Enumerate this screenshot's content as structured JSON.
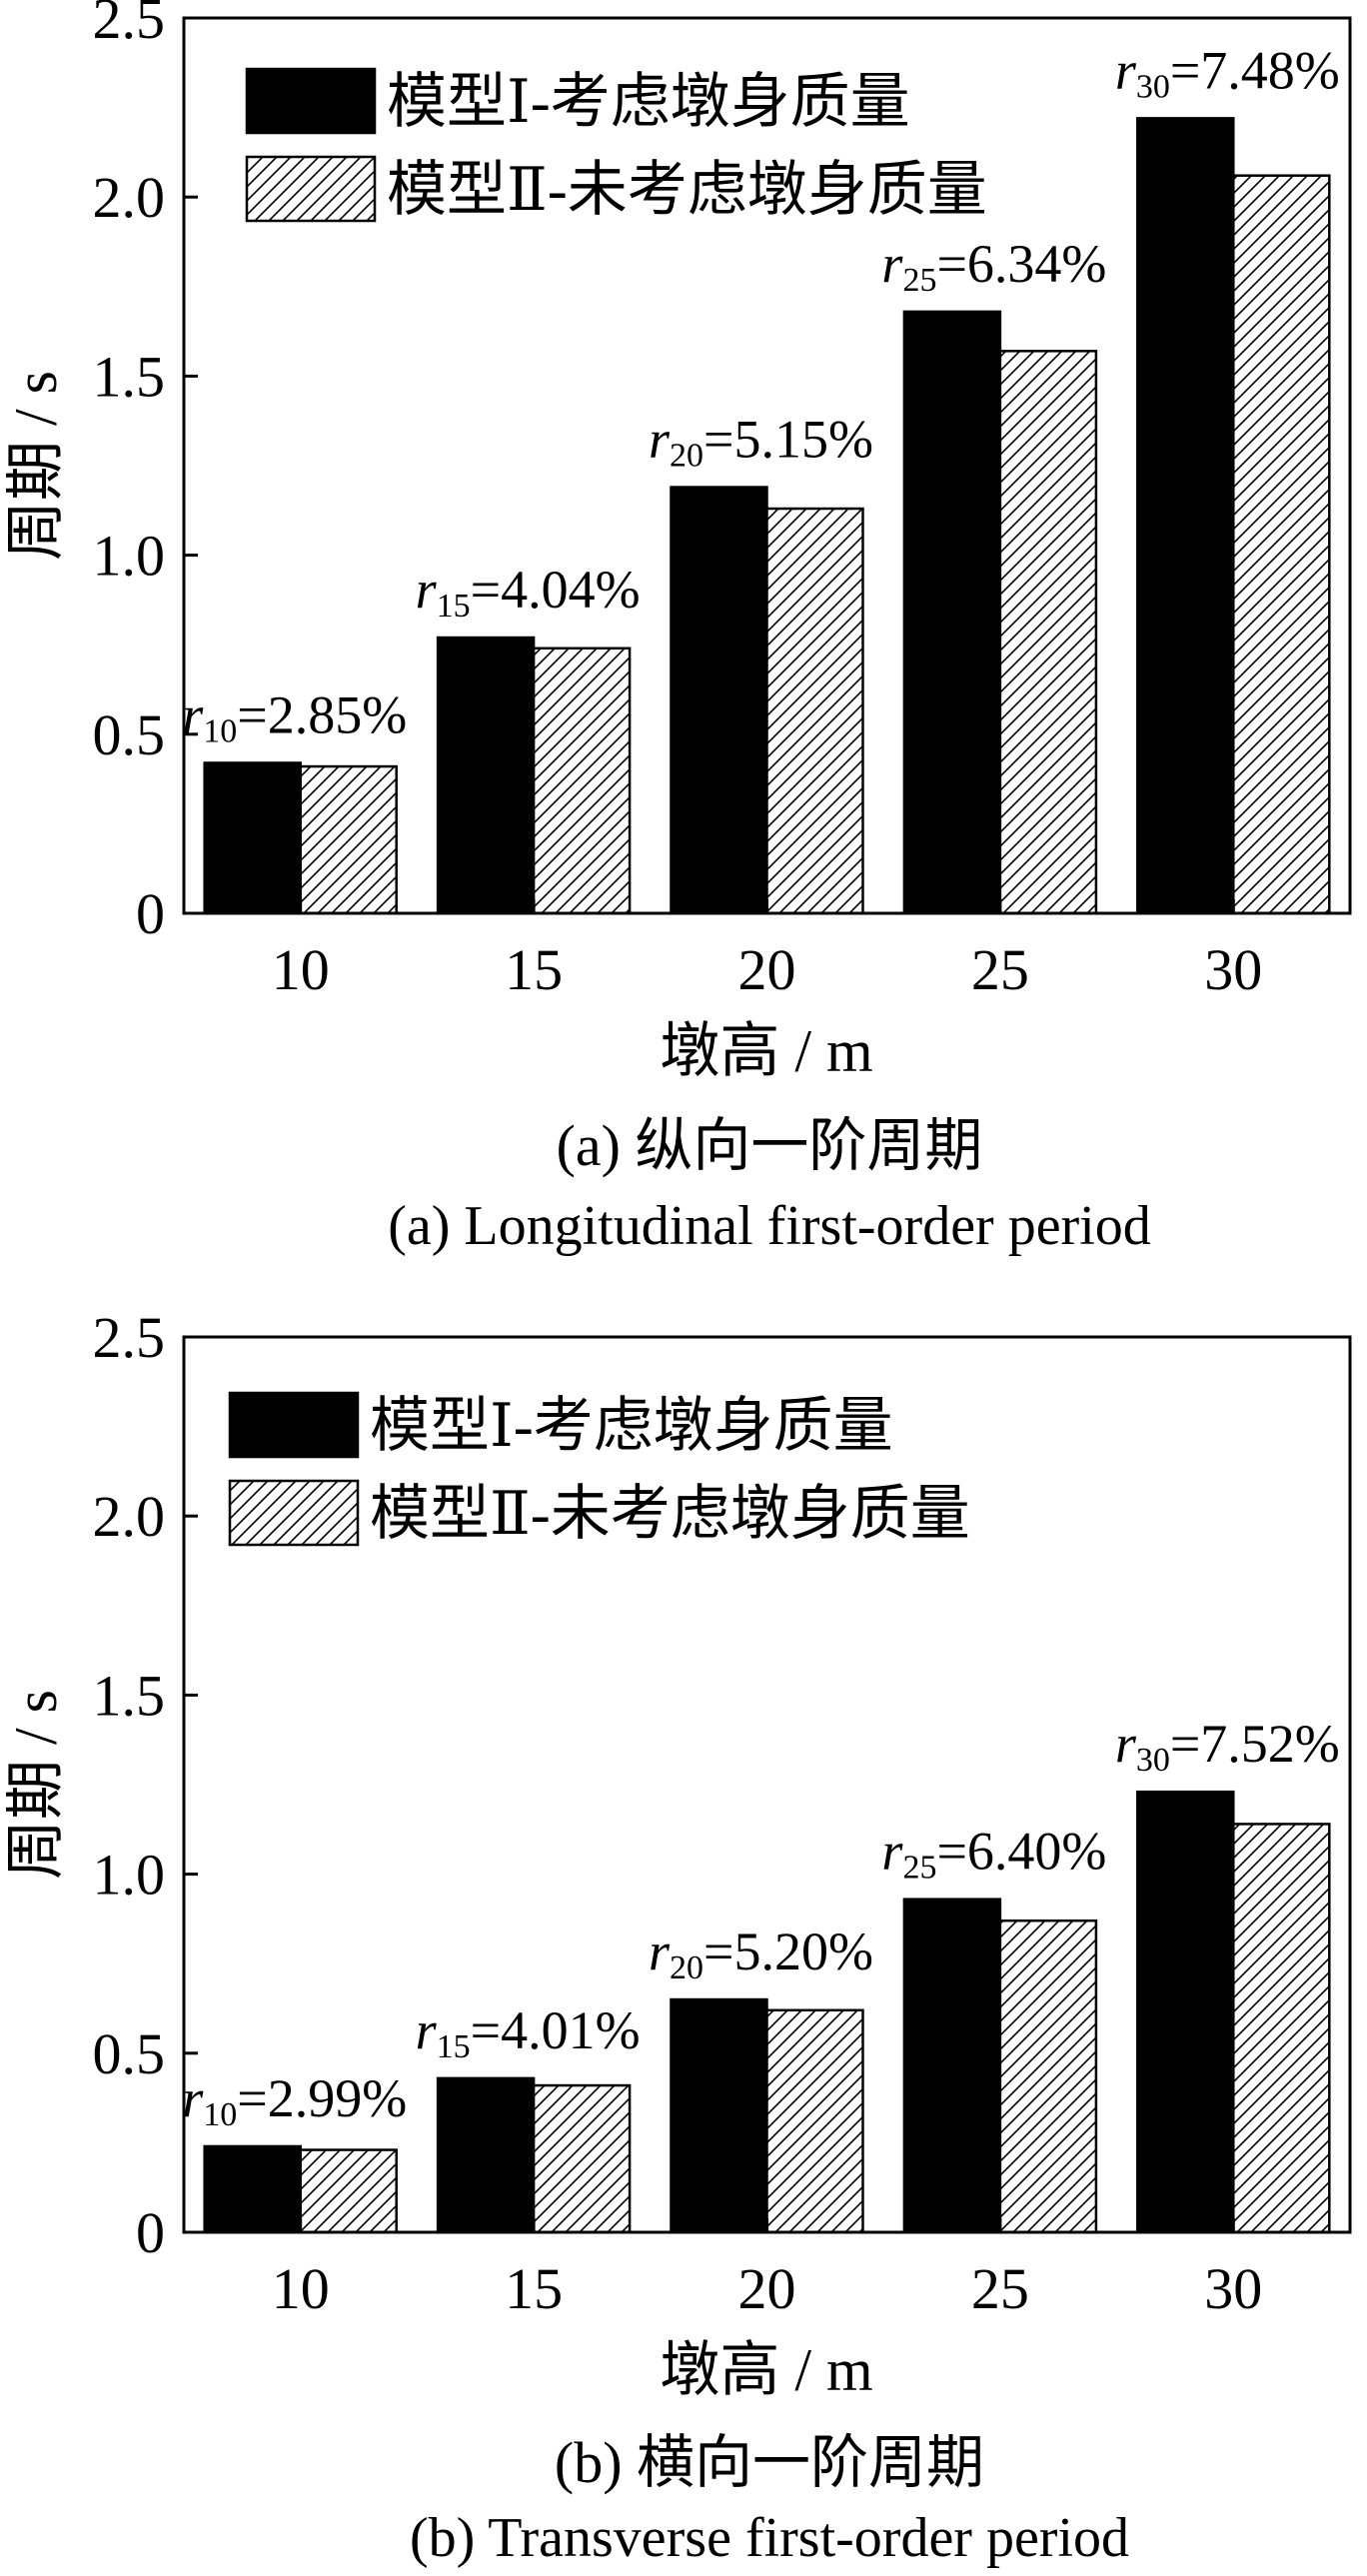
{
  "chart_data": [
    {
      "type": "bar",
      "caption_zh": "(a) 纵向一阶周期",
      "caption_en": "(a) Longitudinal first-order period",
      "xlabel": "墩高 / m",
      "ylabel": "周期 / s",
      "categories": [
        "10",
        "15",
        "20",
        "25",
        "30"
      ],
      "yticks": [
        "0",
        "0.5",
        "1.0",
        "1.5",
        "2.0",
        "2.5"
      ],
      "ylim": [
        0,
        2.5
      ],
      "grid": false,
      "legend_position": "top-left",
      "series": [
        {
          "name": "模型Ⅰ-考虑墩身质量",
          "values": [
            0.42,
            0.77,
            1.19,
            1.68,
            2.22
          ],
          "fill": "#000000",
          "pattern": "solid"
        },
        {
          "name": "模型Ⅱ-未考虑墩身质量",
          "values": [
            0.41,
            0.74,
            1.13,
            1.57,
            2.06
          ],
          "fill": "#ffffff",
          "pattern": "hatched"
        }
      ],
      "annotations": [
        {
          "symbol": "r",
          "subscript": "10",
          "text": "=2.85%"
        },
        {
          "symbol": "r",
          "subscript": "15",
          "text": "=4.04%"
        },
        {
          "symbol": "r",
          "subscript": "20",
          "text": "=5.15%"
        },
        {
          "symbol": "r",
          "subscript": "25",
          "text": "=6.34%"
        },
        {
          "symbol": "r",
          "subscript": "30",
          "text": "=7.48%"
        }
      ]
    },
    {
      "type": "bar",
      "caption_zh": "(b) 横向一阶周期",
      "caption_en": "(b) Transverse first-order period",
      "xlabel": "墩高 / m",
      "ylabel": "周期 / s",
      "categories": [
        "10",
        "15",
        "20",
        "25",
        "30"
      ],
      "yticks": [
        "0",
        "0.5",
        "1.0",
        "1.5",
        "2.0",
        "2.5"
      ],
      "ylim": [
        0,
        2.5
      ],
      "grid": false,
      "legend_position": "top-left",
      "series": [
        {
          "name": "模型Ⅰ-考虑墩身质量",
          "values": [
            0.24,
            0.43,
            0.65,
            0.93,
            1.23
          ],
          "fill": "#000000",
          "pattern": "solid"
        },
        {
          "name": "模型Ⅱ-未考虑墩身质量",
          "values": [
            0.23,
            0.41,
            0.62,
            0.87,
            1.14
          ],
          "fill": "#ffffff",
          "pattern": "hatched"
        }
      ],
      "annotations": [
        {
          "symbol": "r",
          "subscript": "10",
          "text": "=2.99%"
        },
        {
          "symbol": "r",
          "subscript": "15",
          "text": "=4.01%"
        },
        {
          "symbol": "r",
          "subscript": "20",
          "text": "=5.20%"
        },
        {
          "symbol": "r",
          "subscript": "25",
          "text": "=6.40%"
        },
        {
          "symbol": "r",
          "subscript": "30",
          "text": "=7.52%"
        }
      ]
    }
  ]
}
